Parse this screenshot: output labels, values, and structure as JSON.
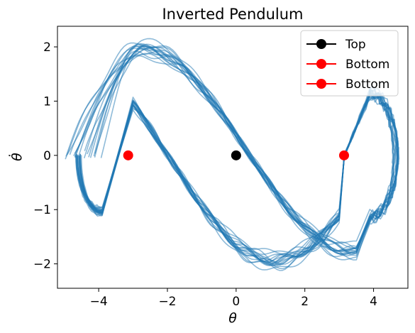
{
  "chart_data": {
    "type": "line",
    "title": "Inverted Pendulum",
    "xlabel": "θ",
    "ylabel": "θ̇",
    "xlim": [
      -5.2,
      5.0
    ],
    "ylim": [
      -2.45,
      2.38
    ],
    "xticks": [
      -4,
      -2,
      0,
      2,
      4
    ],
    "yticks": [
      -2,
      -1,
      0,
      1,
      2
    ],
    "xtick_labels": [
      "−4",
      "−2",
      "0",
      "2",
      "4"
    ],
    "ytick_labels": [
      "−2",
      "−1",
      "0",
      "1",
      "2"
    ],
    "grid": false,
    "legend_position": "top-right",
    "trajectory_color": "#1f77b4",
    "trajectory_alpha": 0.5,
    "trajectory_count": 18,
    "trajectory_shape": {
      "peak_velocity": 2.1,
      "peak_angle": -2.7,
      "left_turn_angle": -4.7,
      "right_turn_angle": 4.7,
      "note_lines": "phase-space orbits of a pendulum swinging around the top"
    },
    "series": [
      {
        "name": "Top",
        "color": "#000000",
        "marker": "circle",
        "points": [
          [
            0,
            0
          ]
        ]
      },
      {
        "name": "Bottom",
        "color": "#ff0000",
        "marker": "circle",
        "points": [
          [
            -3.1416,
            0
          ]
        ]
      },
      {
        "name": "Bottom",
        "color": "#ff0000",
        "marker": "circle",
        "points": [
          [
            3.1416,
            0
          ]
        ]
      }
    ]
  }
}
